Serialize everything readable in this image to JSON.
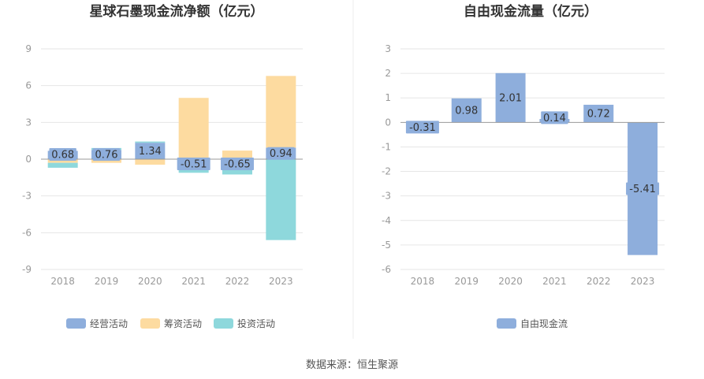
{
  "chart_data": [
    {
      "type": "bar",
      "stacked": true,
      "title": "星球石墨现金流净额（亿元）",
      "categories": [
        "2018",
        "2019",
        "2020",
        "2021",
        "2022",
        "2023"
      ],
      "ylim": [
        -9,
        9
      ],
      "yticks": [
        9,
        6,
        3,
        0,
        -3,
        -6,
        -9
      ],
      "grid": true,
      "legend_position": "bottom",
      "series": [
        {
          "name": "经营活动",
          "color": "#8eaedc",
          "values": [
            0.68,
            0.76,
            1.34,
            -0.51,
            -0.65,
            0.94
          ]
        },
        {
          "name": "筹资活动",
          "color": "#fddba0",
          "values": [
            -0.3,
            -0.3,
            -0.45,
            5.0,
            0.7,
            5.85
          ]
        },
        {
          "name": "投资活动",
          "color": "#8ed8dc",
          "values": [
            -0.4,
            0.15,
            0.1,
            -0.6,
            -0.6,
            -6.6
          ]
        }
      ],
      "data_labels": [
        "0.68",
        "0.76",
        "1.34",
        "-0.51",
        "-0.65",
        "0.94"
      ]
    },
    {
      "type": "bar",
      "title": "自由现金流量（亿元）",
      "categories": [
        "2018",
        "2019",
        "2020",
        "2021",
        "2022",
        "2023"
      ],
      "ylim": [
        -6,
        3
      ],
      "yticks": [
        3,
        2,
        1,
        0,
        -1,
        -2,
        -3,
        -4,
        -5,
        -6
      ],
      "grid": true,
      "legend_position": "bottom",
      "series": [
        {
          "name": "自由现金流",
          "color": "#8eaedc",
          "values": [
            -0.31,
            0.98,
            2.01,
            0.14,
            0.72,
            -5.41
          ]
        }
      ],
      "data_labels": [
        "-0.31",
        "0.98",
        "2.01",
        "0.14",
        "0.72",
        "-5.41"
      ]
    }
  ],
  "footer": {
    "source": "数据来源：恒生聚源"
  }
}
